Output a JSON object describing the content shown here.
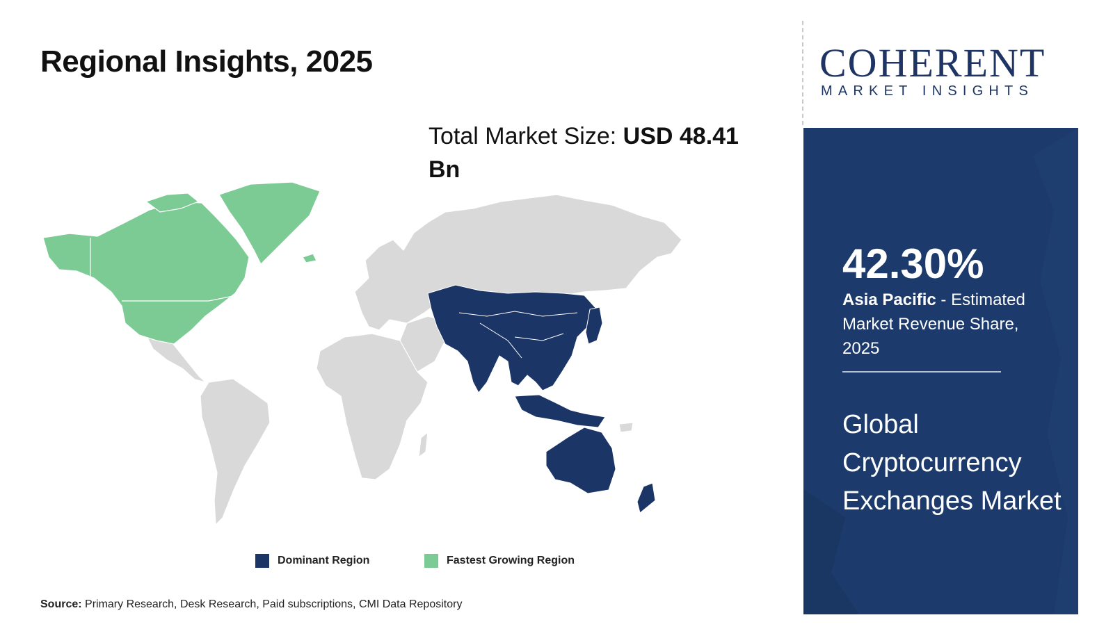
{
  "title": "Regional Insights, 2025",
  "market_size": {
    "label": "Total Market Size: ",
    "value": "USD 48.41 Bn"
  },
  "legend": [
    {
      "label": "Dominant Region",
      "color": "#1c3567"
    },
    {
      "label": "Fastest Growing Region",
      "color": "#7ccb95"
    }
  ],
  "source": {
    "label": "Source:",
    "text": " Primary Research, Desk Research, Paid subscriptions, CMI Data Repository"
  },
  "logo": {
    "main": "COHERENT",
    "sub": "MARKET INSIGHTS"
  },
  "panel": {
    "share": "42.30%",
    "region": "Asia Pacific",
    "share_desc": " - Estimated Market Revenue Share, 2025",
    "market_name": "Global Cryptocurrency Exchanges Market"
  },
  "map": {
    "regions": [
      {
        "name": "North America",
        "status": "Fastest Growing Region"
      },
      {
        "name": "Asia Pacific",
        "status": "Dominant Region"
      }
    ],
    "colors": {
      "other": "#d9d9d9",
      "dominant": "#1c3567",
      "fastest": "#7ccb95"
    }
  }
}
